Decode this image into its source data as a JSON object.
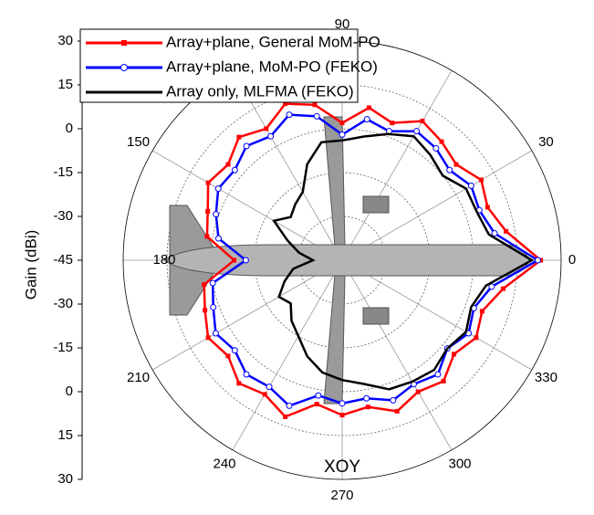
{
  "chart_data": {
    "type": "polar-line",
    "y_label": "Gain (dBi)",
    "annotation": "XOY",
    "x": [
      0,
      10,
      20,
      30,
      40,
      50,
      60,
      70,
      80,
      90,
      100,
      110,
      120,
      130,
      140,
      150,
      160,
      170,
      180,
      190,
      200,
      210,
      220,
      230,
      240,
      250,
      260,
      270,
      280,
      290,
      300,
      310,
      320,
      330,
      340,
      350
    ],
    "xticks": [
      0,
      30,
      90,
      150,
      180,
      210,
      240,
      270,
      300,
      330
    ],
    "ylim": [
      -45,
      30
    ],
    "yticks": [
      -45,
      -30,
      -15,
      0,
      15,
      30
    ],
    "grid": true,
    "legend": "top-left",
    "series": [
      {
        "name": "Array+plane, General MoM-PO",
        "color": "#ff0000",
        "marker": "square",
        "values": [
          23,
          12,
          8,
          10,
          6,
          8,
          10,
          5,
          8,
          2,
          9,
          12,
          7,
          10,
          6,
          8,
          4,
          2,
          -8,
          3,
          5,
          8,
          6,
          10,
          8,
          12,
          5,
          8,
          6,
          10,
          7,
          9,
          5,
          8,
          6,
          11
        ]
      },
      {
        "name": "Array+plane, MoM-PO (FEKO)",
        "color": "#0000ff",
        "marker": "circle",
        "values": [
          22,
          8,
          5,
          6,
          3,
          5,
          6,
          2,
          4,
          -2,
          5,
          8,
          4,
          6,
          3,
          4,
          1,
          -2,
          -12,
          0,
          2,
          5,
          3,
          6,
          5,
          8,
          2,
          4,
          3,
          6,
          4,
          6,
          2,
          5,
          3,
          7
        ]
      },
      {
        "name": "Array only, MLFMA (FEKO)",
        "color": "#000000",
        "marker": "none",
        "values": [
          20,
          6,
          4,
          4,
          0,
          2,
          4,
          1,
          -2,
          -4,
          -4,
          -10,
          -18,
          -20,
          -22,
          -18,
          -25,
          -30,
          -35,
          -28,
          -24,
          -20,
          -22,
          -18,
          -15,
          -10,
          -6,
          -4,
          -2,
          2,
          3,
          4,
          2,
          4,
          2,
          5
        ]
      }
    ]
  }
}
